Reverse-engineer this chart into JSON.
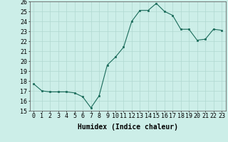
{
  "x": [
    0,
    1,
    2,
    3,
    4,
    5,
    6,
    7,
    8,
    9,
    10,
    11,
    12,
    13,
    14,
    15,
    16,
    17,
    18,
    19,
    20,
    21,
    22,
    23
  ],
  "y": [
    17.7,
    17.0,
    16.9,
    16.9,
    16.9,
    16.8,
    16.4,
    15.3,
    16.5,
    19.6,
    20.4,
    21.4,
    24.0,
    25.1,
    25.1,
    25.8,
    25.0,
    24.6,
    23.2,
    23.2,
    22.1,
    22.2,
    23.2,
    23.1
  ],
  "ylim": [
    15,
    26
  ],
  "yticks": [
    15,
    16,
    17,
    18,
    19,
    20,
    21,
    22,
    23,
    24,
    25,
    26
  ],
  "xlabel": "Humidex (Indice chaleur)",
  "line_color": "#1a6b5a",
  "marker_color": "#1a6b5a",
  "bg_color": "#cceee8",
  "grid_color": "#b0d8d0",
  "xlabel_fontsize": 7,
  "tick_fontsize": 6
}
